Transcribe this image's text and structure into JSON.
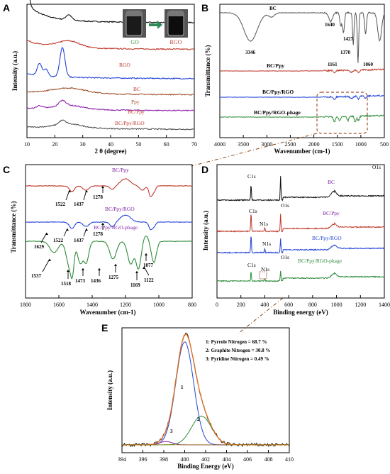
{
  "panel_labels": [
    "A",
    "B",
    "C",
    "D",
    "E"
  ],
  "colors": {
    "black": "#111111",
    "red": "#c0392b",
    "blue": "#2444d6",
    "brown": "#a0522d",
    "purple": "#8e24aa",
    "darkgray": "#555555",
    "green": "#2e8b3a",
    "olive": "#9a7d0a",
    "orange": "#e07020",
    "label_red": "#c0392b",
    "label_blue": "#2444d6",
    "label_purple": "#7b1fa2",
    "label_green": "#2e8b3a"
  },
  "chart_data": [
    {
      "panel": "A",
      "type": "line",
      "xlabel": "2 θ (degree)",
      "ylabel": "Intensity (a.u.)",
      "xlim": [
        10,
        70
      ],
      "xticks": [
        "10",
        "20",
        "30",
        "40",
        "50",
        "60",
        "70"
      ],
      "inset_labels": [
        "GO",
        "RGO"
      ],
      "series": [
        {
          "name": "GO",
          "color": "#111111",
          "offset": 0.86,
          "peaks": [
            [
              10.5,
              0.09,
              0.6
            ],
            [
              25,
              0.04,
              1.0
            ]
          ],
          "base": 0.12
        },
        {
          "name": "RGO",
          "color": "#c0392b",
          "offset": 0.66,
          "peaks": [
            [
              25,
              0.05,
              4
            ]
          ],
          "base": 0.05
        },
        {
          "name": "BC",
          "color": "#2444d6",
          "offset": 0.44,
          "peaks": [
            [
              14.5,
              0.09,
              0.8
            ],
            [
              16.8,
              0.05,
              0.8
            ],
            [
              22.7,
              0.22,
              0.9
            ]
          ],
          "base": 0.02
        },
        {
          "name": "Ppy",
          "color": "#a0522d",
          "offset": 0.32,
          "peaks": [
            [
              25,
              0.04,
              6
            ]
          ],
          "base": 0.0
        },
        {
          "name": "BC/Ppy",
          "color": "#8e24aa",
          "offset": 0.2,
          "peaks": [
            [
              14.5,
              0.02,
              1
            ],
            [
              22.7,
              0.04,
              1.2
            ],
            [
              25,
              0.03,
              5
            ]
          ],
          "base": 0.0
        },
        {
          "name": "BC/Ppy/RGO",
          "color": "#555555",
          "offset": 0.06,
          "peaks": [
            [
              22.7,
              0.03,
              1.2
            ],
            [
              25,
              0.03,
              5
            ]
          ],
          "base": 0.0
        }
      ]
    },
    {
      "panel": "B",
      "type": "line",
      "xlabel": "Wavenumber (cm-1)",
      "ylabel": "Transmittance (%)",
      "xlim": [
        4000,
        500
      ],
      "xticks": [
        "4000",
        "3500",
        "3000",
        "2500",
        "2000",
        "1500",
        "1000",
        "500"
      ],
      "series_labels": [
        "BC",
        "BC/Ppy",
        "BC/Ppy/RGO",
        "BC/Ppy/RGO-phage"
      ],
      "annotations": [
        "3346",
        "1640",
        "1427",
        "1370",
        "1161",
        "1060"
      ]
    },
    {
      "panel": "C",
      "type": "line",
      "xlabel": "Wavenumber (cm-1)",
      "ylabel": "Transmittance (%)",
      "xlim": [
        1800,
        800
      ],
      "xticks": [
        "1800",
        "1600",
        "1400",
        "1200",
        "1000",
        "800"
      ],
      "series_labels": [
        "BC/Ppy",
        "BC/Ppy/RGO",
        "BC/Ppy/RGO-phage"
      ],
      "annotations_ppy": [
        "1522",
        "1437",
        "1278"
      ],
      "annotations_rgo": [
        "1522",
        "1437",
        "1278"
      ],
      "annotations_phage": [
        "1629",
        "1537",
        "1518",
        "1473",
        "1436",
        "1275",
        "1169",
        "1122",
        "1077"
      ]
    },
    {
      "panel": "D",
      "type": "line",
      "xlabel": "Binding energy (eV)",
      "ylabel": "Intensity (a.u.)",
      "xlim": [
        0,
        1400
      ],
      "xticks": [
        "0",
        "200",
        "400",
        "600",
        "800",
        "1000",
        "1200",
        "1400"
      ],
      "series_labels": [
        "BC",
        "BC/Ppy",
        "BC/Ppy/RGO",
        "BC/Ppy/RGO-phage"
      ],
      "peak_labels": [
        "C1s",
        "O1s",
        "N1s"
      ]
    },
    {
      "panel": "E",
      "type": "line",
      "xlabel": "Binding Energy (eV)",
      "ylabel": "Intensity (a.u.)",
      "xlim": [
        394,
        410
      ],
      "xticks": [
        "394",
        "396",
        "398",
        "400",
        "402",
        "404",
        "406",
        "408",
        "410"
      ],
      "legend": [
        "1: Pyrrole Nitrogen = 68.7 %",
        "2: Graphite Nitrogen = 30.8 %",
        "3: Pyridine Nitrogen = 0.49 %"
      ],
      "components": [
        {
          "name": "1",
          "center": 400.0,
          "height": 0.93,
          "width": 0.85,
          "percent": 68.7
        },
        {
          "name": "2",
          "center": 401.6,
          "height": 0.26,
          "width": 0.95,
          "percent": 30.8
        },
        {
          "name": "3",
          "center": 398.2,
          "height": 0.03,
          "width": 0.6,
          "percent": 0.49
        }
      ]
    }
  ]
}
